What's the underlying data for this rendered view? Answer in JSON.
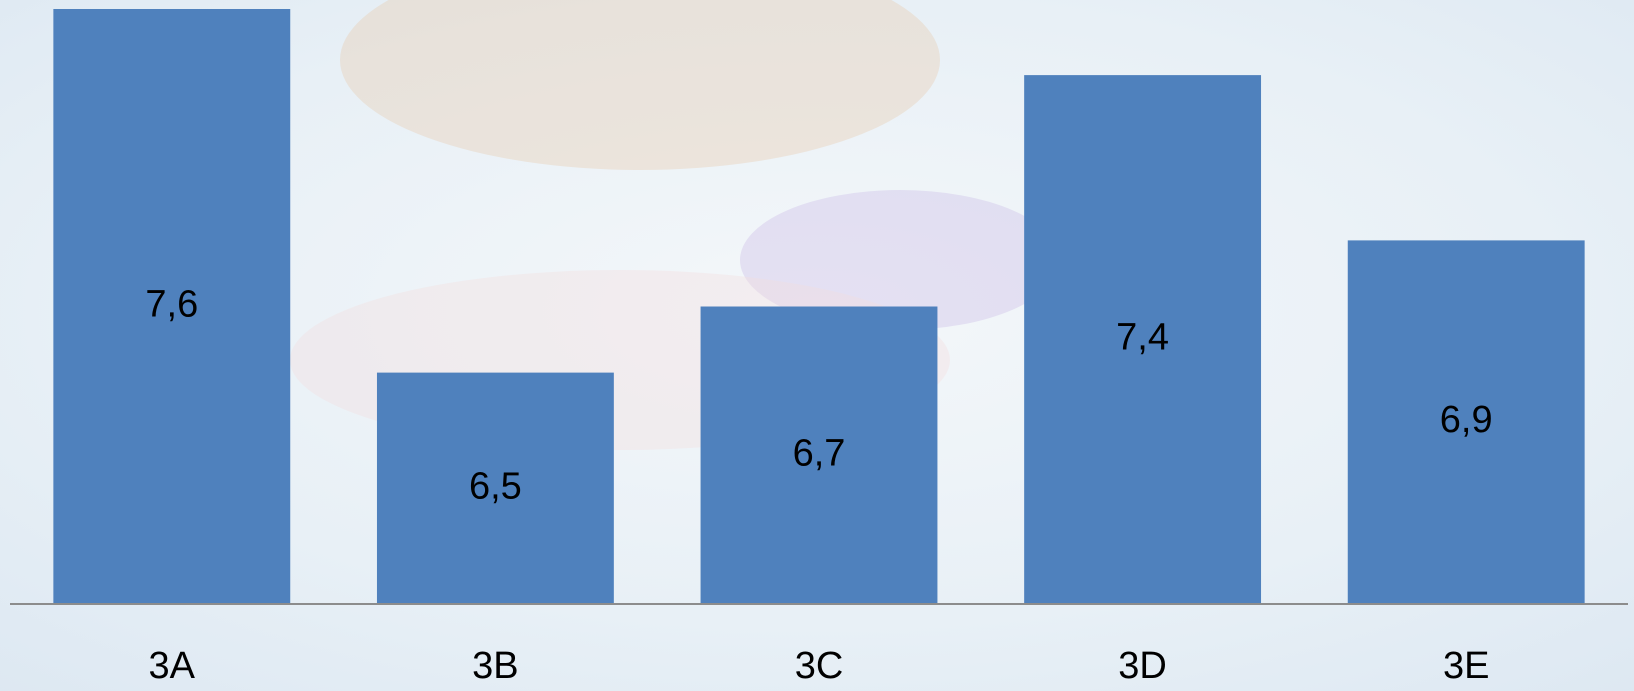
{
  "chart_data": {
    "type": "bar",
    "categories": [
      "3A",
      "3B",
      "3C",
      "3D",
      "3E"
    ],
    "values": [
      7.6,
      6.5,
      6.7,
      7.4,
      6.9
    ],
    "value_labels": [
      "7,6",
      "6,5",
      "6,7",
      "7,4",
      "6,9"
    ],
    "color": "#4f81bd",
    "ylim": [
      5.8,
      7.6
    ]
  }
}
